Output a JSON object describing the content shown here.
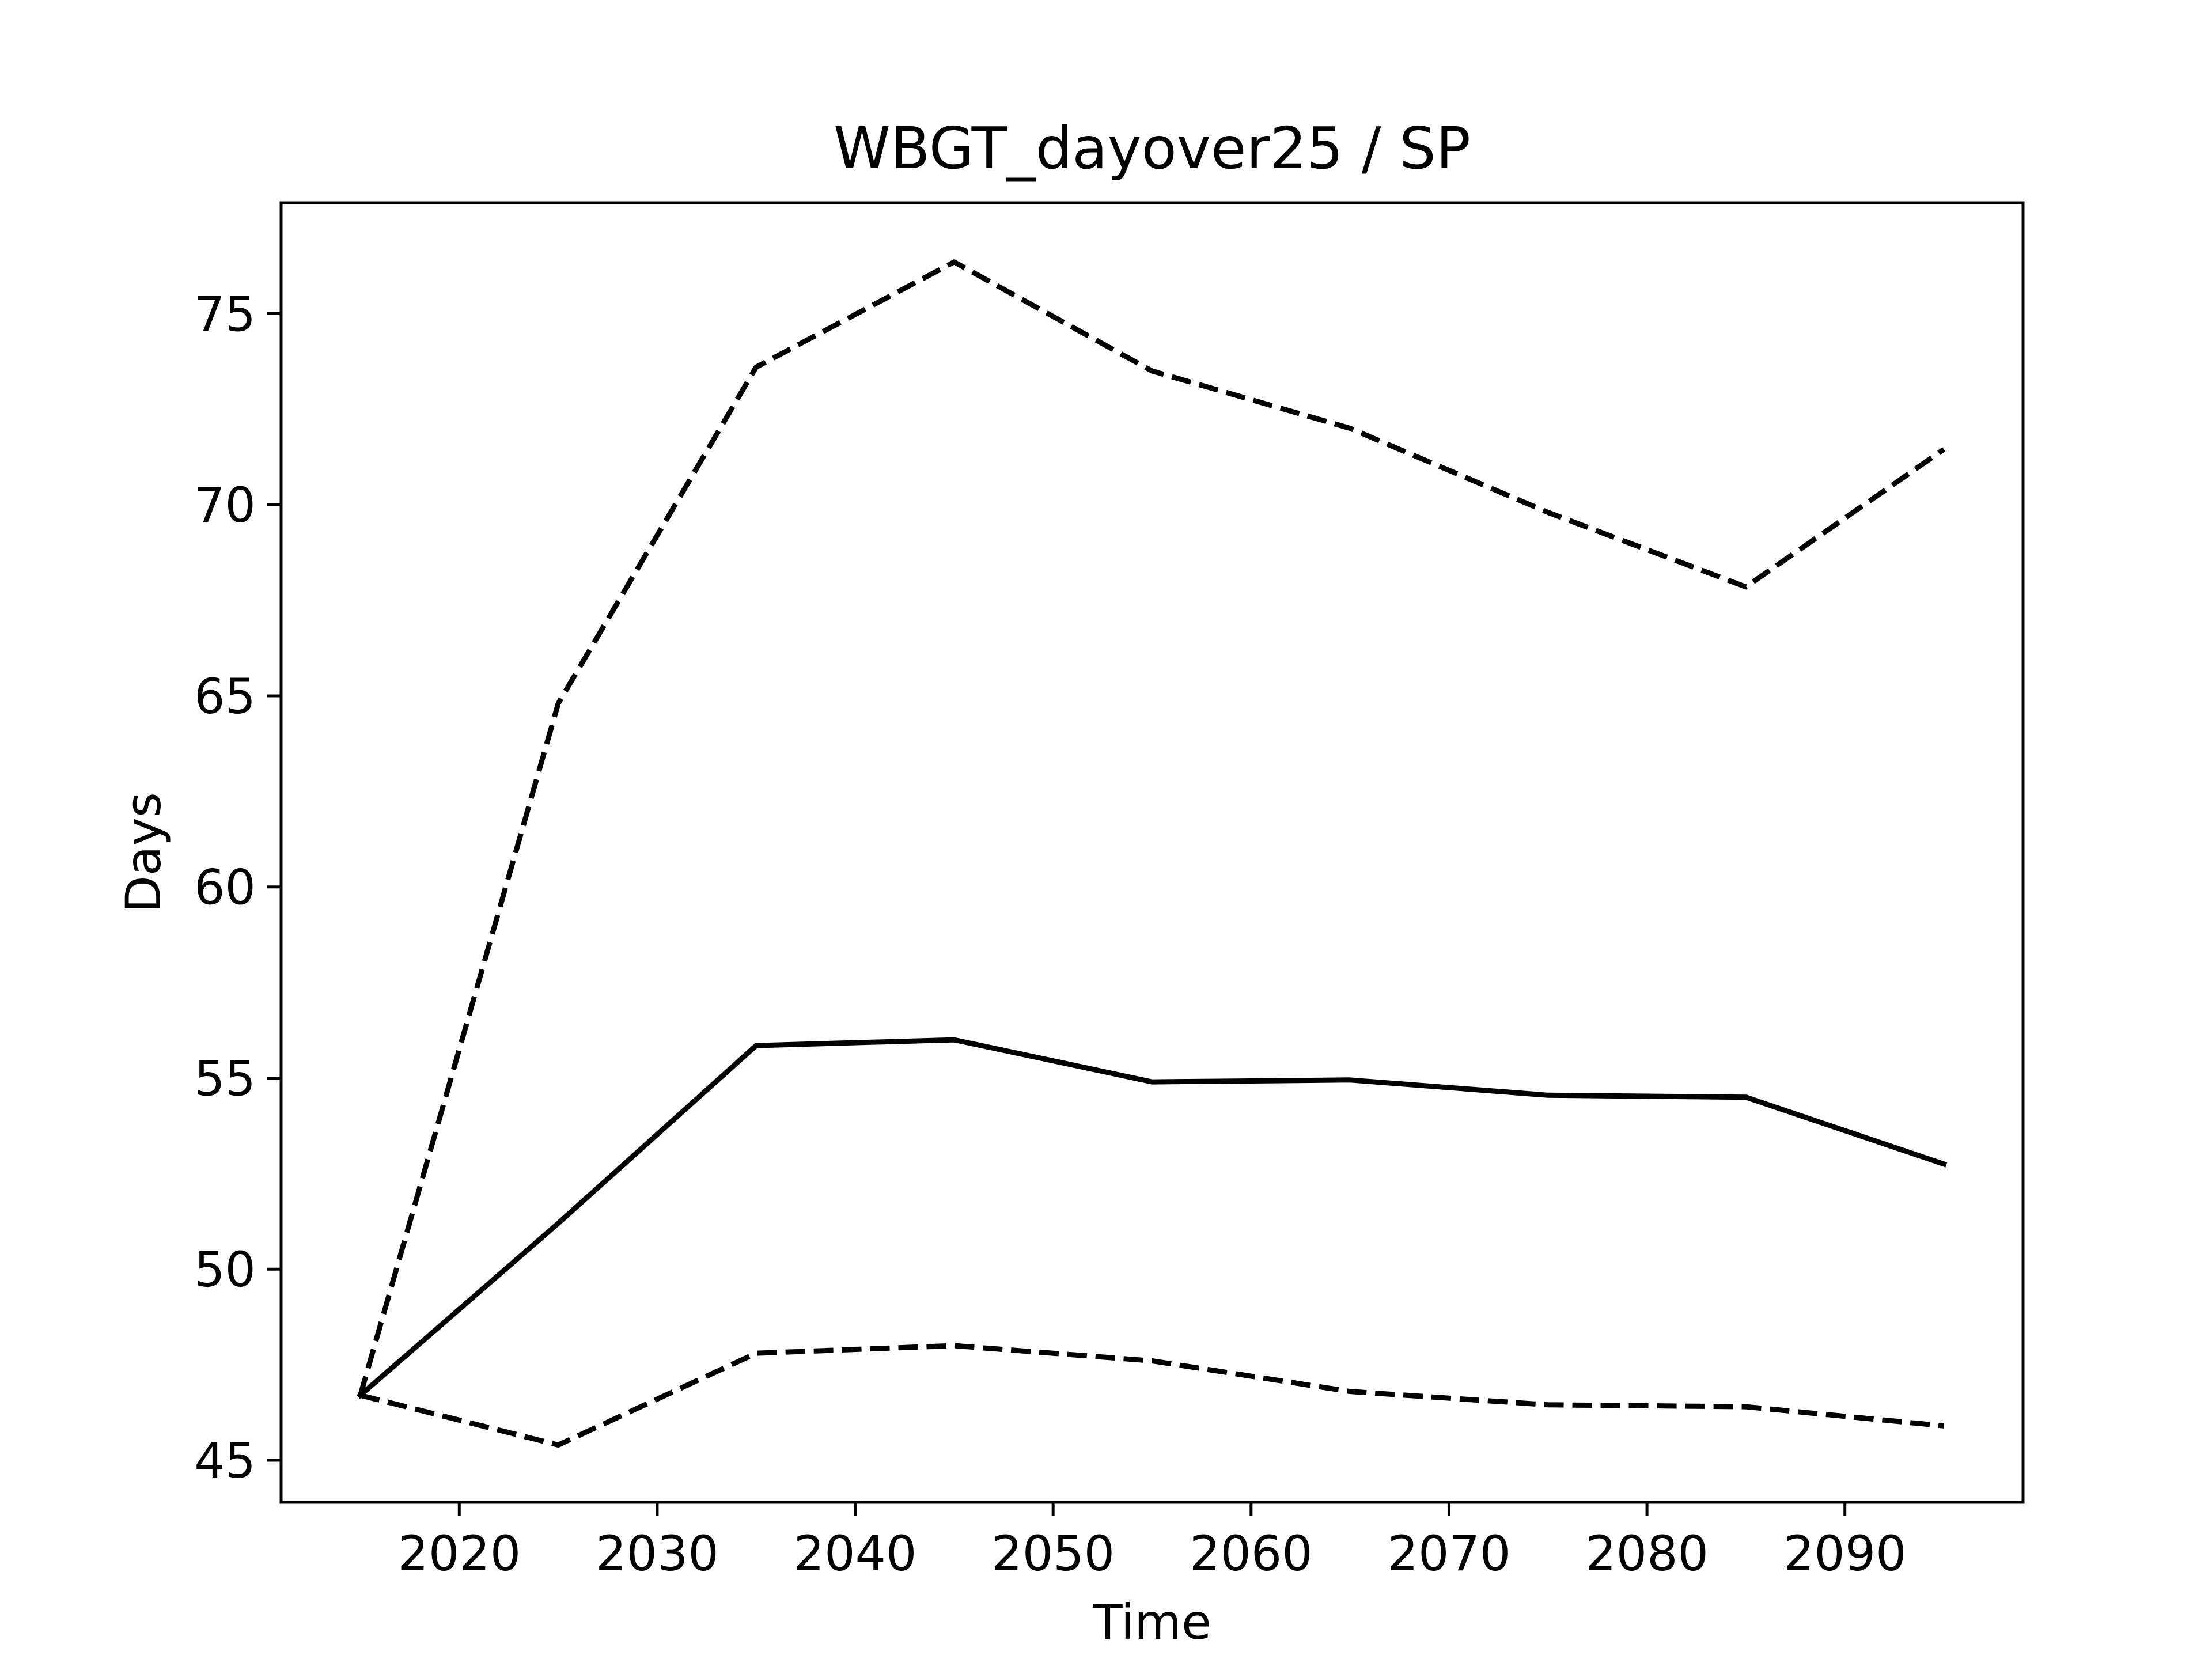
{
  "chart_data": {
    "type": "line",
    "title": "WBGT_dayover25 / SP",
    "xlabel": "Time",
    "ylabel": "Days",
    "xlim": [
      2011,
      2099
    ],
    "ylim": [
      43.9,
      77.9
    ],
    "xticks": [
      2020,
      2030,
      2040,
      2050,
      2060,
      2070,
      2080,
      2090
    ],
    "yticks": [
      45,
      50,
      55,
      60,
      65,
      70,
      75
    ],
    "grid": false,
    "x": [
      2015,
      2025,
      2035,
      2045,
      2055,
      2065,
      2075,
      2085,
      2095
    ],
    "series": [
      {
        "style": "solid",
        "color": "#000000",
        "values": [
          46.7,
          51.2,
          55.85,
          56.0,
          54.9,
          54.95,
          54.55,
          54.5,
          52.75
        ]
      },
      {
        "style": "dashed",
        "color": "#000000",
        "values": [
          46.7,
          64.8,
          73.6,
          76.35,
          73.5,
          72.0,
          69.8,
          67.85,
          71.45
        ]
      },
      {
        "style": "dashed",
        "color": "#000000",
        "values": [
          46.7,
          45.4,
          47.8,
          48.0,
          47.6,
          46.8,
          46.45,
          46.4,
          45.9
        ]
      }
    ]
  }
}
